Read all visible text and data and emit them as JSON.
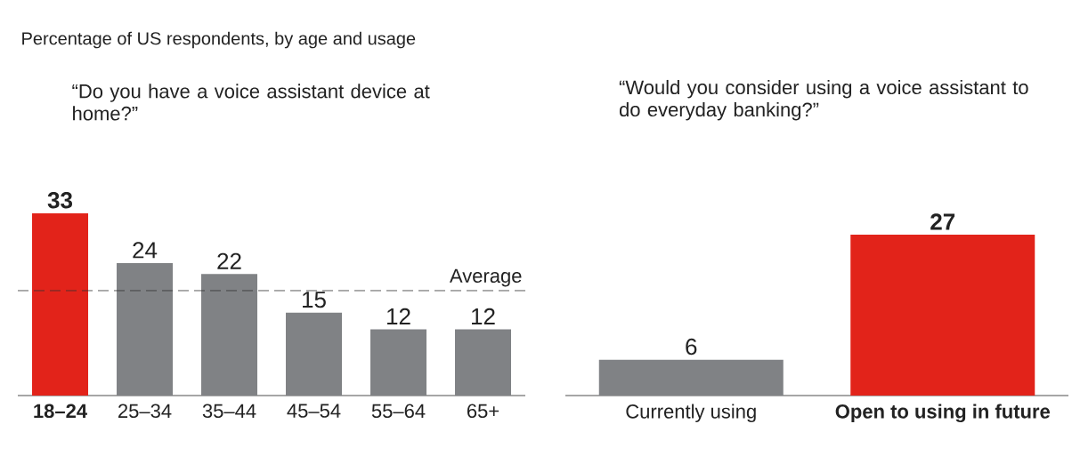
{
  "chart_data": [
    {
      "type": "bar",
      "title": "Percentage of US respondents, by age and usage",
      "subtitle": "“Do you have a voice assistant device at home?”",
      "categories": [
        "**18–24**",
        "25–34",
        "35–44",
        "45–54",
        "55–64",
        "65+"
      ],
      "values": [
        33,
        24,
        22,
        15,
        12,
        12
      ],
      "value_labels": [
        "**33**",
        "24",
        "22",
        "15",
        "12",
        "12"
      ],
      "colors": [
        "#e2231a",
        "#808285",
        "#808285",
        "#808285",
        "#808285",
        "#808285"
      ],
      "ref_lines": [
        {
          "axis": "y",
          "value": 19,
          "label": "Average",
          "line_style": "dashed"
        }
      ]
    },
    {
      "type": "bar",
      "subtitle": "“Would you consider using a voice assistant to do everyday banking?”",
      "categories": [
        "Currently using",
        "**Open to using in future**"
      ],
      "values": [
        6,
        27
      ],
      "value_labels": [
        "6",
        "**27**"
      ],
      "colors": [
        "#808285",
        "#e2231a"
      ]
    }
  ]
}
